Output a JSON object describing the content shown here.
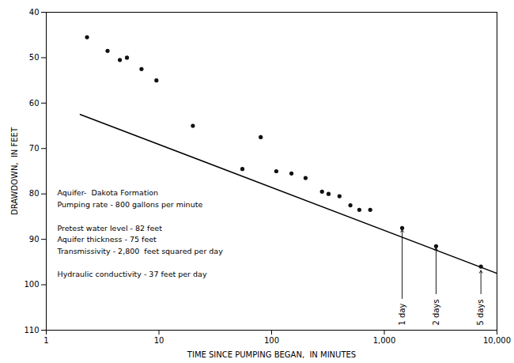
{
  "chart_data": {
    "type": "scatter",
    "xlabel": "TIME SINCE PUMPING BEGAN,  IN MINUTES",
    "ylabel": "DRAWDOWN,  IN FEET",
    "log": "x",
    "xlim": [
      1.0,
      10000.0
    ],
    "ylim": [
      110.0,
      40.0
    ],
    "xticks": [
      1,
      10,
      100,
      {
        "value": 1000,
        "label": "1,000"
      },
      {
        "value": 10000,
        "label": "10,000"
      }
    ],
    "yticks": [
      40,
      50,
      60,
      70,
      80,
      90,
      100,
      110
    ],
    "grid": false,
    "x": [
      2.3,
      3.5,
      4.5,
      5.2,
      7.0,
      9.5,
      20.0,
      55.0,
      80.0,
      110.0,
      150.0,
      200.0,
      280.0,
      320.0,
      400.0,
      500.0,
      600.0,
      750.0,
      1440.0,
      2880.0,
      7200.0
    ],
    "values": [
      45.5,
      48.5,
      50.5,
      50.0,
      52.5,
      55.0,
      65.0,
      74.5,
      67.5,
      75.0,
      75.5,
      76.5,
      79.5,
      80.0,
      80.5,
      82.5,
      83.5,
      83.5,
      87.5,
      91.5,
      96.0
    ],
    "color": "#111111",
    "marker": "circle",
    "trend_line": {
      "x": [
        2.0,
        10000.0
      ],
      "values": [
        62.5,
        97.5
      ],
      "color": "#000000"
    },
    "annotations": [
      {
        "text": "1 day",
        "x": 1440.0,
        "y": 87.5
      },
      {
        "text": "2 days",
        "x": 2880.0,
        "y": 91.5
      },
      {
        "text": "5 days",
        "x": 7200.0,
        "y": 96.5
      }
    ],
    "notes": [
      [
        "Aquifer-  Dakota Formation",
        "Pumping rate - 800 gallons per minute"
      ],
      [
        "Pretest water level - 82 feet",
        "Aquifer thickness - 75 feet",
        "Transmissivity - 2,800  feet squared per day"
      ],
      [
        "Hydraulic conductivity - 37 feet per day"
      ]
    ]
  }
}
